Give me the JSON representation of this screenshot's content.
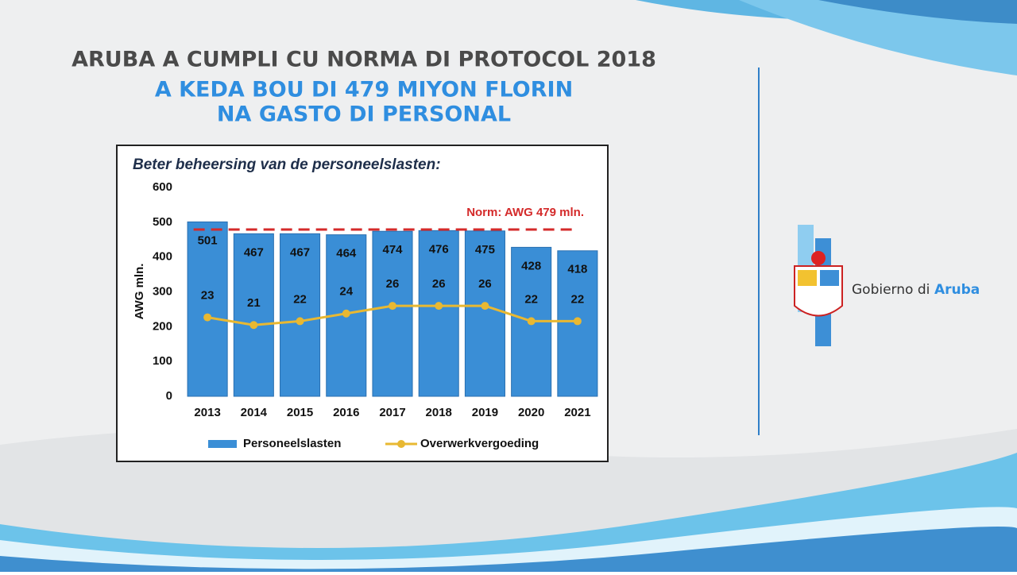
{
  "header": {
    "title": "ARUBA A CUMPLI CU NORMA DI PROTOCOL 2018",
    "subtitle_1": "A KEDA BOU DI 479 MIYON FLORIN",
    "subtitle_2": "NA GASTO DI PERSONAL"
  },
  "chart_data": {
    "type": "bar",
    "title": "Beter beheersing van de personeelslasten:",
    "ylabel": "AWG mln.",
    "categories": [
      "2013",
      "2014",
      "2015",
      "2016",
      "2017",
      "2018",
      "2019",
      "2020",
      "2021"
    ],
    "series": [
      {
        "name": "Personeelslasten",
        "color": "#3a8ed6",
        "values": [
          501,
          467,
          467,
          464,
          474,
          476,
          475,
          428,
          418
        ]
      },
      {
        "name": "Overwerkvergoeding",
        "color": "#e8b832",
        "axis": "y2",
        "type": "line",
        "values": [
          23,
          21,
          22,
          24,
          26,
          26,
          26,
          22,
          22
        ]
      }
    ],
    "ylim": [
      0,
      600
    ],
    "yticks": [
      0,
      100,
      200,
      300,
      400,
      500,
      600
    ],
    "y2lim": [
      2.4,
      56.9
    ],
    "reference_line": {
      "value": 479,
      "label": "Norm: AWG 479 mln.",
      "color": "#d42a2a"
    },
    "legend": "bottom"
  },
  "logo": {
    "text_1": "Gobierno di",
    "text_2": "Aruba"
  }
}
